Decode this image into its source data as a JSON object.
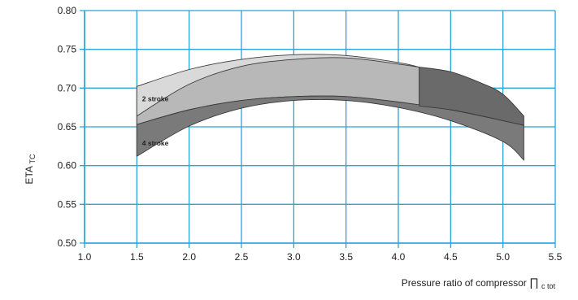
{
  "chart_data": {
    "type": "area",
    "xlabel_main": "Pressure ratio of compressor ",
    "xlabel_symbol": "∏",
    "xlabel_subscript": "c tot",
    "ylabel_main": "ETA",
    "ylabel_subscript": "TC",
    "xlim": [
      1.0,
      5.5
    ],
    "ylim": [
      0.5,
      0.8
    ],
    "xticks": [
      "1.0",
      "1.5",
      "2.0",
      "2.5",
      "3.0",
      "3.5",
      "4.0",
      "4.5",
      "5.0",
      "5.5"
    ],
    "yticks": [
      "0.50",
      "0.55",
      "0.60",
      "0.65",
      "0.70",
      "0.75",
      "0.80"
    ],
    "grid": true,
    "annotations": [
      {
        "text": "2 stroke",
        "x": 1.55,
        "y": 0.683
      },
      {
        "text": "4 stroke",
        "x": 1.55,
        "y": 0.626
      }
    ],
    "series": [
      {
        "color": "#d9d9d9",
        "upper": [
          [
            1.5,
            0.702
          ],
          [
            2.0,
            0.724
          ],
          [
            2.5,
            0.737
          ],
          [
            3.0,
            0.743
          ],
          [
            3.5,
            0.742
          ],
          [
            4.0,
            0.733
          ],
          [
            4.2,
            0.727
          ]
        ],
        "lower": [
          [
            1.5,
            0.664
          ],
          [
            2.0,
            0.691
          ],
          [
            2.5,
            0.706
          ],
          [
            3.0,
            0.713
          ],
          [
            3.5,
            0.712
          ],
          [
            4.0,
            0.704
          ],
          [
            4.2,
            0.699
          ]
        ]
      },
      {
        "color": "#b8b8b8",
        "upper": [
          [
            1.5,
            0.664
          ],
          [
            2.0,
            0.705
          ],
          [
            2.5,
            0.728
          ],
          [
            3.0,
            0.737
          ],
          [
            3.5,
            0.739
          ],
          [
            4.0,
            0.731
          ],
          [
            4.2,
            0.727
          ]
        ],
        "lower": [
          [
            1.5,
            0.653
          ],
          [
            2.0,
            0.672
          ],
          [
            2.5,
            0.684
          ],
          [
            3.0,
            0.689
          ],
          [
            3.5,
            0.689
          ],
          [
            4.0,
            0.682
          ],
          [
            4.2,
            0.677
          ]
        ]
      },
      {
        "color": "#7a7a7a",
        "upper": [
          [
            1.5,
            0.653
          ],
          [
            2.0,
            0.672
          ],
          [
            2.5,
            0.684
          ],
          [
            3.0,
            0.689
          ],
          [
            3.5,
            0.689
          ],
          [
            4.0,
            0.682
          ],
          [
            4.5,
            0.672
          ],
          [
            5.0,
            0.658
          ],
          [
            5.2,
            0.652
          ]
        ],
        "lower": [
          [
            1.5,
            0.612
          ],
          [
            2.0,
            0.651
          ],
          [
            2.5,
            0.674
          ],
          [
            3.0,
            0.684
          ],
          [
            3.5,
            0.684
          ],
          [
            4.0,
            0.675
          ],
          [
            4.5,
            0.658
          ],
          [
            5.0,
            0.631
          ],
          [
            5.2,
            0.607
          ]
        ]
      },
      {
        "color": "#6a6a6a",
        "upper": [
          [
            4.2,
            0.727
          ],
          [
            4.5,
            0.721
          ],
          [
            4.8,
            0.706
          ],
          [
            5.0,
            0.692
          ],
          [
            5.2,
            0.664
          ]
        ],
        "lower": [
          [
            4.2,
            0.677
          ],
          [
            4.5,
            0.672
          ],
          [
            4.8,
            0.664
          ],
          [
            5.0,
            0.658
          ],
          [
            5.2,
            0.652
          ]
        ]
      }
    ]
  }
}
